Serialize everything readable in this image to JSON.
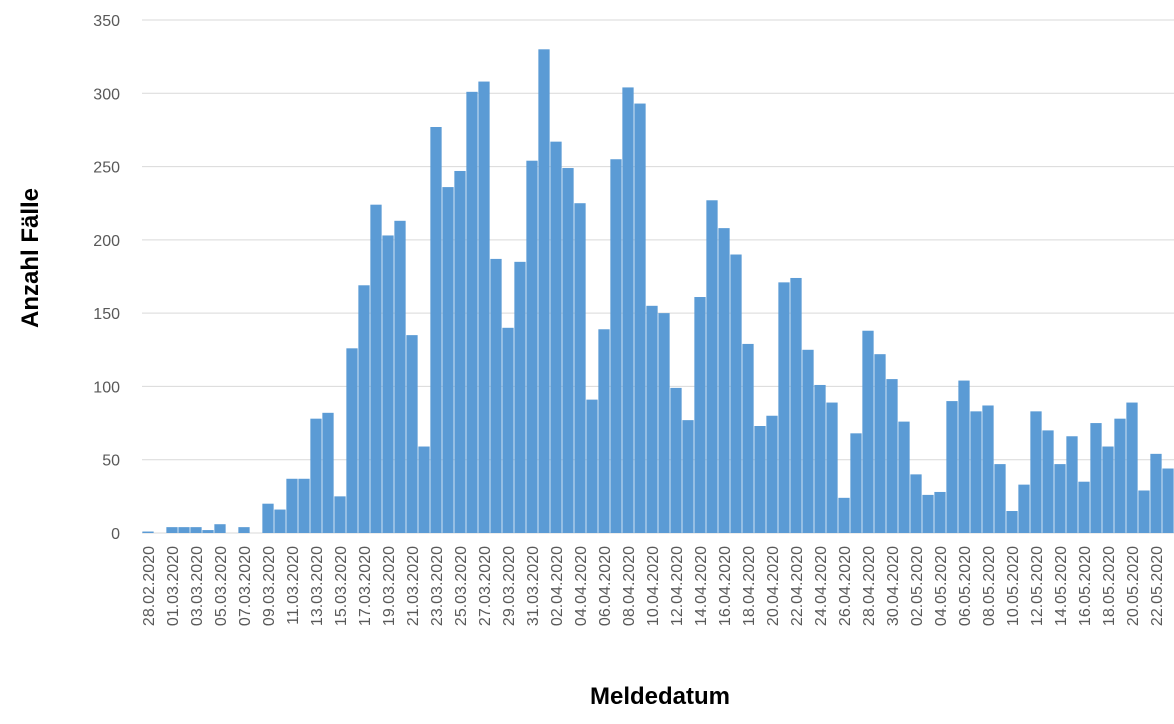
{
  "chart_data": {
    "type": "bar",
    "title": "",
    "xlabel": "Meldedatum",
    "ylabel": "Anzahl Fälle",
    "ylim": [
      0,
      350
    ],
    "yticks": [
      0,
      50,
      100,
      150,
      200,
      250,
      300,
      350
    ],
    "grid": true,
    "color": "#5b9bd5",
    "categories": [
      "28.02.2020",
      "29.02.2020",
      "01.03.2020",
      "02.03.2020",
      "03.03.2020",
      "04.03.2020",
      "05.03.2020",
      "06.03.2020",
      "07.03.2020",
      "08.03.2020",
      "09.03.2020",
      "10.03.2020",
      "11.03.2020",
      "12.03.2020",
      "13.03.2020",
      "14.03.2020",
      "15.03.2020",
      "16.03.2020",
      "17.03.2020",
      "18.03.2020",
      "19.03.2020",
      "20.03.2020",
      "21.03.2020",
      "22.03.2020",
      "23.03.2020",
      "24.03.2020",
      "25.03.2020",
      "26.03.2020",
      "27.03.2020",
      "28.03.2020",
      "29.03.2020",
      "30.03.2020",
      "31.03.2020",
      "01.04.2020",
      "02.04.2020",
      "03.04.2020",
      "04.04.2020",
      "05.04.2020",
      "06.04.2020",
      "07.04.2020",
      "08.04.2020",
      "09.04.2020",
      "10.04.2020",
      "11.04.2020",
      "12.04.2020",
      "13.04.2020",
      "14.04.2020",
      "15.04.2020",
      "16.04.2020",
      "17.04.2020",
      "18.04.2020",
      "19.04.2020",
      "20.04.2020",
      "21.04.2020",
      "22.04.2020",
      "23.04.2020",
      "24.04.2020",
      "25.04.2020",
      "26.04.2020",
      "27.04.2020",
      "28.04.2020",
      "29.04.2020",
      "30.04.2020",
      "01.05.2020",
      "02.05.2020",
      "03.05.2020",
      "04.05.2020",
      "05.05.2020",
      "06.05.2020",
      "07.05.2020",
      "08.05.2020",
      "09.05.2020",
      "10.05.2020",
      "11.05.2020",
      "12.05.2020",
      "13.05.2020",
      "14.05.2020",
      "15.05.2020",
      "16.05.2020",
      "17.05.2020",
      "18.05.2020",
      "19.05.2020",
      "20.05.2020",
      "21.05.2020",
      "22.05.2020",
      "23.05.2020"
    ],
    "values": [
      1,
      0,
      4,
      4,
      4,
      2,
      6,
      0,
      4,
      0,
      20,
      16,
      37,
      37,
      78,
      82,
      25,
      126,
      169,
      224,
      203,
      213,
      135,
      59,
      277,
      236,
      247,
      301,
      308,
      187,
      140,
      185,
      254,
      330,
      267,
      249,
      225,
      91,
      139,
      255,
      304,
      293,
      155,
      150,
      99,
      77,
      161,
      227,
      208,
      190,
      129,
      73,
      80,
      171,
      174,
      125,
      101,
      89,
      24,
      68,
      138,
      122,
      105,
      76,
      40,
      26,
      28,
      90,
      104,
      83,
      87,
      47,
      15,
      33,
      83,
      70,
      47,
      66,
      35,
      75,
      59,
      78,
      89,
      29,
      54,
      44
    ],
    "tick_every": 2
  }
}
